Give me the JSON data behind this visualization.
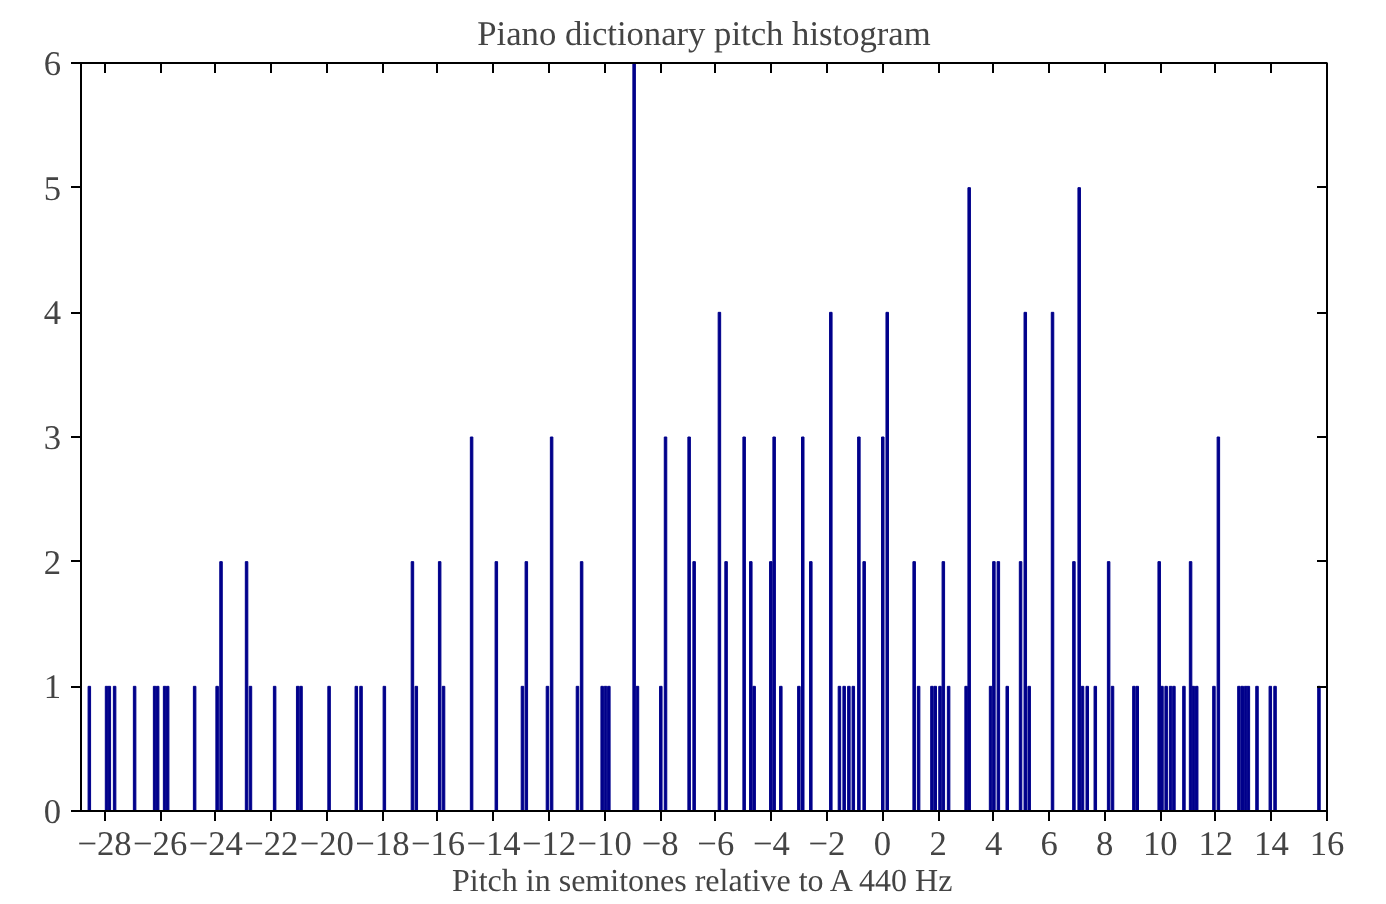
{
  "chart_data": {
    "type": "bar",
    "title": "Piano dictionary pitch histogram",
    "xlabel": "Pitch in semitones relative to A 440 Hz",
    "x": [
      -28.55,
      -27.93,
      -27.83,
      -27.64,
      -26.92,
      -26.2,
      -26.09,
      -25.84,
      -25.73,
      -24.76,
      -23.95,
      -23.81,
      -22.89,
      -22.75,
      -21.88,
      -21.05,
      -20.93,
      -19.92,
      -18.94,
      -18.77,
      -17.93,
      -16.92,
      -16.78,
      -15.94,
      -15.8,
      -14.79,
      -13.9,
      -12.96,
      -12.82,
      -12.06,
      -11.91,
      -10.98,
      -10.83,
      -10.09,
      -9.97,
      -9.85,
      -8.94,
      -8.82,
      -7.98,
      -7.81,
      -6.96,
      -6.78,
      -5.87,
      -5.63,
      -4.98,
      -4.74,
      -4.62,
      -4.02,
      -3.9,
      -3.66,
      -3.01,
      -2.87,
      -2.58,
      -1.86,
      -1.55,
      -1.38,
      -1.21,
      -1.05,
      -0.85,
      -0.66,
      0.01,
      0.17,
      1.14,
      1.3,
      1.78,
      1.9,
      2.07,
      2.19,
      2.38,
      3.01,
      3.12,
      3.89,
      4.01,
      4.17,
      4.49,
      4.97,
      5.14,
      5.28,
      6.12,
      6.89,
      7.08,
      7.2,
      7.37,
      7.66,
      8.14,
      8.28,
      9.05,
      9.17,
      9.96,
      10.06,
      10.21,
      10.37,
      10.49,
      10.85,
      11.09,
      11.19,
      11.31,
      11.93,
      12.09,
      12.83,
      12.95,
      13.07,
      13.17,
      13.48,
      13.96,
      14.13,
      15.71
    ],
    "values": [
      1,
      1,
      1,
      1,
      1,
      1,
      1,
      1,
      1,
      1,
      1,
      2,
      2,
      1,
      1,
      1,
      1,
      1,
      1,
      1,
      1,
      2,
      1,
      2,
      1,
      3,
      2,
      1,
      2,
      1,
      3,
      1,
      2,
      1,
      1,
      1,
      6,
      1,
      1,
      3,
      3,
      2,
      4,
      2,
      3,
      2,
      1,
      2,
      3,
      1,
      1,
      3,
      2,
      4,
      1,
      1,
      1,
      1,
      3,
      2,
      3,
      4,
      2,
      1,
      1,
      1,
      1,
      2,
      1,
      1,
      5,
      1,
      2,
      2,
      1,
      2,
      4,
      1,
      4,
      2,
      5,
      1,
      1,
      1,
      2,
      1,
      1,
      1,
      2,
      1,
      1,
      1,
      1,
      1,
      2,
      1,
      1,
      1,
      3,
      1,
      1,
      1,
      1,
      1,
      1,
      1,
      1
    ],
    "color": "#00008b",
    "xlim": [
      -28.85,
      16
    ],
    "ylim": [
      0,
      6
    ],
    "xticks": [
      {
        "value": -28,
        "label": "−28"
      },
      {
        "value": -26,
        "label": "−26"
      },
      {
        "value": -24,
        "label": "−24"
      },
      {
        "value": -22,
        "label": "−22"
      },
      {
        "value": -20,
        "label": "−20"
      },
      {
        "value": -18,
        "label": "−18"
      },
      {
        "value": -16,
        "label": "−16"
      },
      {
        "value": -14,
        "label": "−14"
      },
      {
        "value": -12,
        "label": "−12"
      },
      {
        "value": -10,
        "label": "−10"
      },
      {
        "value": -8,
        "label": "−8"
      },
      {
        "value": -6,
        "label": "−6"
      },
      {
        "value": -4,
        "label": "−4"
      },
      {
        "value": -2,
        "label": "−2"
      },
      0,
      2,
      4,
      6,
      8,
      10,
      12,
      14,
      16
    ],
    "yticks": [
      0,
      1,
      2,
      3,
      4,
      5,
      6
    ],
    "grid": false
  }
}
